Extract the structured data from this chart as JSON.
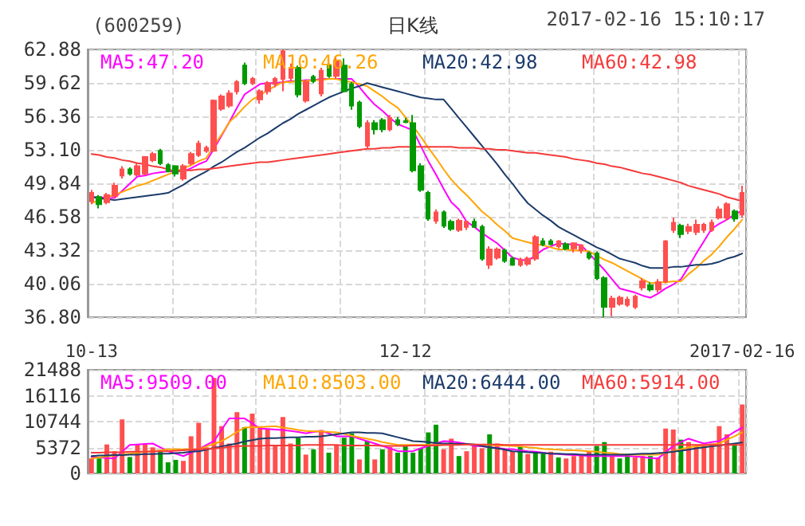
{
  "chart_data": [
    {
      "type": "candlestick",
      "title": "(600259)",
      "subtitle": "日K线",
      "annotations": [
        "2017-02-16 15:10:17"
      ],
      "categories": [
        null,
        null,
        null,
        null,
        null,
        null,
        null,
        null,
        null,
        null,
        null,
        null,
        null,
        null,
        null,
        null,
        null,
        null,
        null,
        null,
        null,
        null,
        null,
        null,
        null,
        null,
        null,
        null,
        null,
        null,
        null,
        null,
        null,
        null,
        null,
        null,
        null,
        null,
        null,
        null,
        null,
        null,
        null,
        null,
        null,
        null,
        null,
        null,
        null,
        null,
        null,
        null,
        null,
        null,
        null,
        null,
        null,
        null,
        null,
        null,
        null,
        null,
        null,
        null,
        null,
        null,
        null,
        null,
        null,
        null,
        null,
        null,
        null,
        null,
        null,
        null,
        null,
        null,
        null,
        null,
        null,
        null,
        null,
        null,
        null,
        null
      ],
      "ohlc": [
        [
          48.1,
          49.2,
          47.8,
          48.9
        ],
        [
          48.5,
          48.7,
          47.4,
          47.8
        ],
        [
          48.0,
          48.9,
          47.8,
          48.7
        ],
        [
          48.6,
          49.9,
          48.4,
          49.6
        ],
        [
          50.6,
          51.5,
          50.3,
          51.2
        ],
        [
          51.2,
          51.4,
          50.6,
          50.8
        ],
        [
          50.7,
          51.8,
          50.5,
          51.5
        ],
        [
          50.8,
          52.5,
          50.6,
          52.4
        ],
        [
          52.1,
          52.9,
          51.9,
          52.7
        ],
        [
          53.0,
          53.2,
          51.6,
          51.8
        ],
        [
          51.6,
          51.8,
          50.9,
          51.0
        ],
        [
          51.5,
          51.6,
          50.5,
          50.8
        ],
        [
          50.3,
          51.7,
          50.1,
          51.5
        ],
        [
          51.8,
          52.9,
          51.6,
          52.7
        ],
        [
          52.6,
          54.0,
          52.4,
          53.7
        ],
        [
          53.0,
          53.5,
          52.8,
          53.3
        ],
        [
          53.0,
          58.0,
          52.9,
          57.9
        ],
        [
          57.1,
          58.5,
          56.9,
          58.3
        ],
        [
          57.4,
          58.9,
          57.2,
          58.6
        ],
        [
          58.8,
          59.9,
          58.5,
          59.7
        ],
        [
          61.3,
          61.6,
          59.4,
          59.6
        ],
        [
          59.6,
          60.2,
          59.4,
          60.0
        ],
        [
          58.0,
          59.0,
          57.6,
          58.8
        ],
        [
          58.8,
          59.8,
          58.5,
          59.6
        ],
        [
          59.5,
          60.2,
          59.2,
          60.0
        ],
        [
          60.0,
          62.88,
          58.8,
          62.7
        ],
        [
          60.1,
          61.5,
          59.8,
          61.1
        ],
        [
          61.1,
          61.3,
          58.2,
          58.5
        ],
        [
          57.9,
          59.9,
          57.7,
          59.7
        ],
        [
          60.2,
          60.4,
          59.6,
          59.8
        ],
        [
          58.6,
          61.1,
          58.3,
          60.8
        ],
        [
          61.3,
          61.5,
          60.1,
          60.3
        ],
        [
          60.3,
          62.2,
          60.0,
          61.8
        ],
        [
          61.3,
          62.0,
          58.7,
          58.8
        ],
        [
          59.5,
          59.7,
          57.0,
          57.4
        ],
        [
          57.7,
          57.9,
          55.2,
          55.4
        ],
        [
          53.5,
          56.0,
          53.2,
          55.7
        ],
        [
          55.7,
          56.0,
          54.6,
          55.1
        ],
        [
          56.0,
          56.2,
          54.8,
          55.1
        ],
        [
          55.1,
          56.5,
          54.9,
          56.2
        ],
        [
          56.0,
          56.3,
          55.4,
          55.6
        ],
        [
          55.9,
          56.2,
          55.7,
          55.8
        ],
        [
          55.7,
          56.5,
          50.9,
          51.1
        ],
        [
          51.5,
          51.8,
          49.0,
          49.2
        ],
        [
          48.9,
          49.1,
          46.2,
          46.4
        ],
        [
          46.2,
          47.3,
          45.9,
          47.0
        ],
        [
          47.0,
          47.2,
          45.5,
          45.7
        ],
        [
          46.1,
          46.3,
          45.2,
          45.4
        ],
        [
          45.3,
          46.4,
          45.1,
          46.2
        ],
        [
          45.6,
          46.2,
          45.3,
          46.1
        ],
        [
          46.1,
          46.4,
          45.5,
          45.6
        ],
        [
          45.6,
          45.8,
          42.3,
          42.5
        ],
        [
          41.9,
          43.7,
          41.5,
          43.4
        ],
        [
          42.6,
          43.6,
          42.4,
          43.4
        ],
        [
          43.3,
          43.5,
          42.1,
          42.3
        ],
        [
          42.5,
          42.7,
          41.8,
          41.9
        ],
        [
          41.9,
          42.6,
          41.7,
          42.4
        ],
        [
          42.0,
          42.7,
          41.8,
          42.5
        ],
        [
          42.5,
          44.8,
          42.3,
          44.6
        ],
        [
          44.2,
          44.5,
          43.7,
          43.9
        ],
        [
          44.2,
          44.4,
          43.8,
          43.9
        ],
        [
          43.7,
          44.3,
          43.5,
          44.2
        ],
        [
          43.9,
          44.1,
          43.3,
          43.5
        ],
        [
          43.5,
          44.1,
          43.1,
          44.0
        ],
        [
          43.3,
          43.9,
          43.0,
          43.8
        ],
        [
          43.0,
          43.2,
          42.4,
          42.6
        ],
        [
          43.0,
          43.2,
          40.4,
          40.6
        ],
        [
          40.6,
          40.8,
          36.8,
          37.8
        ],
        [
          37.8,
          38.9,
          36.9,
          38.6
        ],
        [
          38.1,
          38.9,
          37.9,
          38.7
        ],
        [
          38.0,
          38.8,
          37.8,
          38.5
        ],
        [
          37.8,
          39.0,
          37.6,
          38.8
        ],
        [
          39.7,
          40.6,
          39.4,
          40.3
        ],
        [
          39.9,
          40.2,
          39.3,
          39.5
        ],
        [
          39.5,
          40.5,
          39.2,
          40.2
        ],
        [
          40.3,
          44.3,
          40.1,
          44.2
        ],
        [
          45.3,
          46.5,
          45.0,
          46.0
        ],
        [
          45.7,
          45.9,
          44.5,
          44.9
        ],
        [
          45.2,
          45.9,
          44.9,
          45.6
        ],
        [
          45.1,
          46.3,
          44.8,
          45.8
        ],
        [
          45.3,
          46.0,
          45.0,
          45.8
        ],
        [
          45.3,
          46.3,
          45.1,
          46.0
        ],
        [
          46.5,
          47.6,
          46.3,
          47.3
        ],
        [
          46.5,
          48.0,
          46.2,
          47.8
        ],
        [
          47.1,
          47.3,
          46.1,
          46.4
        ],
        [
          46.8,
          49.6,
          46.5,
          48.9
        ]
      ],
      "colors": [
        "#ff4f4f",
        "#009a00",
        "#ff4f4f",
        "#ff4f4f",
        "#ff4f4f",
        "#009a00",
        "#ff4f4f",
        "#ff4f4f",
        "#ff4f4f",
        "#009a00",
        "#009a00",
        "#009a00",
        "#ff4f4f",
        "#ff4f4f",
        "#ff4f4f",
        "#ff4f4f",
        "#ff4f4f",
        "#ff4f4f",
        "#ff4f4f",
        "#ff4f4f",
        "#009a00",
        "#ff4f4f",
        "#ff4f4f",
        "#ff4f4f",
        "#ff4f4f",
        "#ff4f4f",
        "#ff4f4f",
        "#009a00",
        "#ff4f4f",
        "#009a00",
        "#ff4f4f",
        "#009a00",
        "#ff4f4f",
        "#009a00",
        "#009a00",
        "#009a00",
        "#ff4f4f",
        "#009a00",
        "#009a00",
        "#ff4f4f",
        "#009a00",
        "#009a00",
        "#009a00",
        "#009a00",
        "#009a00",
        "#ff4f4f",
        "#009a00",
        "#009a00",
        "#ff4f4f",
        "#ff4f4f",
        "#009a00",
        "#009a00",
        "#ff4f4f",
        "#ff4f4f",
        "#009a00",
        "#009a00",
        "#ff4f4f",
        "#ff4f4f",
        "#ff4f4f",
        "#009a00",
        "#009a00",
        "#ff4f4f",
        "#009a00",
        "#ff4f4f",
        "#ff4f4f",
        "#009a00",
        "#009a00",
        "#009a00",
        "#ff4f4f",
        "#ff4f4f",
        "#ff4f4f",
        "#ff4f4f",
        "#ff4f4f",
        "#009a00",
        "#ff4f4f",
        "#ff4f4f",
        "#ff4f4f",
        "#009a00",
        "#ff4f4f",
        "#ff4f4f",
        "#ff4f4f",
        "#ff4f4f",
        "#ff4f4f",
        "#ff4f4f",
        "#009a00",
        "#ff4f4f"
      ],
      "series": [
        {
          "type": "line",
          "name": "MA5:47.20",
          "color": "#ff00ff",
          "values": [
            48.5,
            48.5,
            48.4,
            48.4,
            49.1,
            49.8,
            50.5,
            50.6,
            50.8,
            50.9,
            51.0,
            51.0,
            51.0,
            51.3,
            51.7,
            52.0,
            53.2,
            54.5,
            55.8,
            57.2,
            58.5,
            59.0,
            59.5,
            59.6,
            59.6,
            59.7,
            59.8,
            59.8,
            59.9,
            59.9,
            60.0,
            60.0,
            60.0,
            60.0,
            60.0,
            59.2,
            58.3,
            57.5,
            56.9,
            56.2,
            55.6,
            55.3,
            55.0,
            53.5,
            52.0,
            50.7,
            49.3,
            48.0,
            47.3,
            46.1,
            45.6,
            45.0,
            44.5,
            44.0,
            43.3,
            42.6,
            42.4,
            42.3,
            42.8,
            43.4,
            43.7,
            44.0,
            43.9,
            43.9,
            43.8,
            43.0,
            42.2,
            41.4,
            40.5,
            39.6,
            39.4,
            39.2,
            38.9,
            38.7,
            39.1,
            39.6,
            40.0,
            40.5,
            41.7,
            43.0,
            44.2,
            45.4,
            45.9,
            46.3,
            46.8,
            47.2
          ]
        },
        {
          "type": "line",
          "name": "MA10:46.26",
          "color": "#ffa500",
          "values": [
            47.9,
            48.2,
            48.5,
            48.7,
            49.0,
            49.3,
            49.6,
            49.8,
            50.1,
            50.4,
            50.7,
            51.0,
            51.3,
            51.6,
            52.0,
            52.3,
            53.5,
            54.6,
            55.8,
            56.5,
            57.3,
            58.0,
            58.4,
            58.9,
            59.3,
            59.7,
            59.7,
            59.8,
            59.8,
            59.9,
            59.9,
            60.0,
            60.0,
            59.8,
            59.7,
            59.5,
            59.3,
            58.8,
            58.3,
            57.7,
            57.2,
            56.3,
            55.4,
            54.4,
            53.3,
            52.3,
            51.2,
            50.2,
            49.4,
            48.7,
            47.9,
            47.1,
            46.5,
            45.8,
            45.2,
            44.5,
            44.3,
            44.1,
            43.9,
            43.8,
            43.6,
            43.4,
            43.4,
            43.3,
            43.3,
            43.2,
            42.8,
            42.4,
            42.1,
            41.7,
            41.3,
            40.9,
            40.5,
            40.1,
            40.2,
            40.2,
            40.3,
            40.3,
            41.0,
            41.6,
            42.3,
            42.9,
            43.7,
            44.6,
            45.4,
            46.3
          ]
        },
        {
          "type": "line",
          "name": "MA20:42.98",
          "color": "#1b3b6b",
          "values": [
            48.5,
            48.4,
            48.3,
            48.2,
            48.3,
            48.4,
            48.5,
            48.6,
            48.7,
            48.8,
            48.9,
            49.3,
            49.7,
            50.2,
            50.6,
            51.0,
            51.5,
            51.9,
            52.4,
            52.9,
            53.3,
            53.8,
            54.3,
            54.7,
            55.2,
            55.7,
            56.1,
            56.6,
            57.0,
            57.4,
            57.8,
            58.2,
            58.5,
            58.8,
            59.1,
            59.3,
            59.6,
            59.4,
            59.2,
            59.0,
            58.8,
            58.6,
            58.4,
            58.2,
            58.1,
            58.0,
            58.0,
            57.1,
            56.2,
            55.3,
            54.4,
            53.5,
            52.6,
            51.7,
            50.7,
            49.8,
            48.8,
            47.9,
            47.3,
            46.7,
            46.2,
            45.6,
            45.2,
            44.8,
            44.4,
            44.0,
            43.6,
            43.3,
            42.9,
            42.5,
            42.3,
            42.1,
            41.8,
            41.6,
            41.6,
            41.6,
            41.7,
            41.7,
            41.8,
            41.9,
            41.9,
            42.0,
            42.2,
            42.5,
            42.7,
            43.0
          ]
        },
        {
          "type": "line",
          "name": "MA60:42.98",
          "color": "#f53a3a",
          "values": [
            52.7,
            52.6,
            52.4,
            52.3,
            52.1,
            52.0,
            51.8,
            51.7,
            51.5,
            51.4,
            51.2,
            51.0,
            51.1,
            51.1,
            51.2,
            51.2,
            51.3,
            51.4,
            51.5,
            51.6,
            51.7,
            51.8,
            51.9,
            51.9,
            52.0,
            52.1,
            52.2,
            52.3,
            52.4,
            52.5,
            52.6,
            52.7,
            52.8,
            52.9,
            53.0,
            53.1,
            53.2,
            53.2,
            53.3,
            53.3,
            53.4,
            53.4,
            53.4,
            53.4,
            53.4,
            53.4,
            53.4,
            53.4,
            53.3,
            53.3,
            53.3,
            53.2,
            53.2,
            53.1,
            53.1,
            53.0,
            52.9,
            52.8,
            52.8,
            52.7,
            52.6,
            52.5,
            52.4,
            52.2,
            52.1,
            52.0,
            51.8,
            51.7,
            51.5,
            51.4,
            51.2,
            51.0,
            50.8,
            50.7,
            50.5,
            50.3,
            50.1,
            49.9,
            49.6,
            49.4,
            49.2,
            49.0,
            48.8,
            48.5,
            48.3,
            48.1
          ]
        }
      ],
      "ylim": [
        36.8,
        62.88
      ],
      "yticks": [
        {
          "value": 36.8,
          "label": "36.80"
        },
        {
          "value": 40.06,
          "label": "40.06"
        },
        {
          "value": 43.32,
          "label": "43.32"
        },
        {
          "value": 46.58,
          "label": "46.58"
        },
        {
          "value": 49.84,
          "label": "49.84"
        },
        {
          "value": 53.1,
          "label": "53.10"
        },
        {
          "value": 56.36,
          "label": "56.36"
        },
        {
          "value": 59.62,
          "label": "59.62"
        },
        {
          "value": 62.88,
          "label": "62.88"
        }
      ],
      "grid": true,
      "marker": "none"
    },
    {
      "type": "bar",
      "categories": [
        "10-13",
        null,
        null,
        null,
        null,
        null,
        null,
        null,
        null,
        null,
        null,
        null,
        null,
        null,
        null,
        null,
        null,
        null,
        null,
        null,
        null,
        null,
        null,
        null,
        null,
        null,
        null,
        null,
        null,
        null,
        null,
        null,
        null,
        null,
        null,
        null,
        null,
        null,
        null,
        null,
        null,
        "12-12",
        null,
        null,
        null,
        null,
        null,
        null,
        null,
        null,
        null,
        null,
        null,
        null,
        null,
        null,
        null,
        null,
        null,
        null,
        null,
        null,
        null,
        null,
        null,
        null,
        null,
        null,
        null,
        null,
        null,
        null,
        null,
        null,
        null,
        null,
        null,
        null,
        null,
        null,
        null,
        null,
        null,
        null,
        null,
        "2017-02-16"
      ],
      "series": [
        {
          "type": "bar",
          "values": [
            3100,
            3100,
            6000,
            4600,
            11200,
            3400,
            6000,
            6000,
            5400,
            4600,
            2300,
            2800,
            2600,
            7700,
            10500,
            5400,
            19800,
            9800,
            6200,
            12700,
            9600,
            12400,
            9800,
            9300,
            5900,
            11700,
            6200,
            7400,
            3900,
            5000,
            9000,
            4300,
            5900,
            7400,
            8300,
            2900,
            6800,
            2900,
            5000,
            5500,
            4300,
            5700,
            4300,
            5200,
            8500,
            10100,
            5000,
            7200,
            3600,
            4600,
            5700,
            5200,
            8100,
            6200,
            5000,
            4500,
            5500,
            4000,
            4500,
            4100,
            4500,
            3300,
            3100,
            3600,
            4000,
            4600,
            5700,
            6500,
            3600,
            3100,
            4100,
            3300,
            3600,
            3600,
            3300,
            9300,
            9100,
            7000,
            6500,
            5700,
            5700,
            6200,
            9800,
            8100,
            6200,
            14300
          ],
          "colors": [
            "#ff4f4f",
            "#009a00",
            "#ff4f4f",
            "#ff4f4f",
            "#ff4f4f",
            "#009a00",
            "#ff4f4f",
            "#ff4f4f",
            "#ff4f4f",
            "#009a00",
            "#009a00",
            "#009a00",
            "#ff4f4f",
            "#ff4f4f",
            "#ff4f4f",
            "#ff4f4f",
            "#ff4f4f",
            "#ff4f4f",
            "#ff4f4f",
            "#ff4f4f",
            "#009a00",
            "#ff4f4f",
            "#ff4f4f",
            "#ff4f4f",
            "#ff4f4f",
            "#ff4f4f",
            "#ff4f4f",
            "#009a00",
            "#ff4f4f",
            "#009a00",
            "#ff4f4f",
            "#009a00",
            "#ff4f4f",
            "#009a00",
            "#009a00",
            "#ff4f4f",
            "#009a00",
            "#ff4f4f",
            "#009a00",
            "#ff4f4f",
            "#009a00",
            "#009a00",
            "#009a00",
            "#009a00",
            "#009a00",
            "#009a00",
            "#ff4f4f",
            "#ff4f4f",
            "#009a00",
            "#ff4f4f",
            "#ff4f4f",
            "#ff4f4f",
            "#009a00",
            "#ff4f4f",
            "#ff4f4f",
            "#ff4f4f",
            "#009a00",
            "#ff4f4f",
            "#009a00",
            "#009a00",
            "#ff4f4f",
            "#009a00",
            "#ff4f4f",
            "#ff4f4f",
            "#ff4f4f",
            "#ff4f4f",
            "#009a00",
            "#009a00",
            "#ff4f4f",
            "#009a00",
            "#009a00",
            "#ff4f4f",
            "#ff4f4f",
            "#009a00",
            "#ff4f4f",
            "#ff4f4f",
            "#ff4f4f",
            "#009a00",
            "#ff4f4f",
            "#ff4f4f",
            "#ff4f4f",
            "#ff4f4f",
            "#ff4f4f",
            "#ff4f4f",
            "#009a00",
            "#ff4f4f"
          ]
        },
        {
          "type": "line",
          "name": "MA5:9509.00",
          "color": "#ff00ff",
          "values": [
            3400,
            3300,
            3200,
            3100,
            4500,
            5900,
            6000,
            6100,
            6200,
            5400,
            4600,
            4100,
            3600,
            4300,
            5000,
            5900,
            6700,
            9100,
            11400,
            11400,
            11400,
            10400,
            9300,
            9200,
            9100,
            9000,
            8800,
            8600,
            8300,
            8600,
            8800,
            8300,
            7700,
            7700,
            7700,
            7200,
            6700,
            6200,
            5700,
            5200,
            4600,
            4600,
            4600,
            5200,
            5700,
            6200,
            6700,
            6600,
            6400,
            6100,
            5700,
            5600,
            5400,
            5300,
            5100,
            5000,
            4800,
            4600,
            4500,
            4300,
            4100,
            4000,
            3900,
            3800,
            3700,
            3600,
            3600,
            3600,
            3600,
            3600,
            3600,
            3500,
            3400,
            3200,
            3100,
            4400,
            5700,
            6500,
            7200,
            6700,
            6200,
            6500,
            6700,
            7600,
            8600,
            9500
          ]
        },
        {
          "type": "line",
          "name": "MA10:8503.00",
          "color": "#ffa500",
          "values": [
            3100,
            3300,
            3500,
            3700,
            3900,
            4100,
            4300,
            4500,
            4600,
            4800,
            5000,
            5000,
            5000,
            5000,
            5000,
            5600,
            6100,
            6700,
            7600,
            8600,
            9500,
            9600,
            9600,
            9700,
            9800,
            9500,
            9300,
            9000,
            8800,
            8700,
            8700,
            8600,
            8500,
            8200,
            7800,
            7500,
            7200,
            6900,
            6500,
            6200,
            5900,
            5900,
            5900,
            5900,
            5900,
            5900,
            5900,
            5900,
            6000,
            6000,
            6000,
            5900,
            5900,
            5800,
            5800,
            5700,
            5600,
            5400,
            5300,
            5100,
            5000,
            4900,
            4800,
            4800,
            4700,
            4600,
            4500,
            4300,
            4200,
            4000,
            3900,
            3900,
            3900,
            3900,
            3900,
            4300,
            4600,
            5000,
            5400,
            5600,
            5800,
            6000,
            6200,
            7000,
            7700,
            8500
          ]
        },
        {
          "type": "line",
          "name": "MA20:6444.00",
          "color": "#1b3b6b",
          "values": [
            3600,
            3700,
            3700,
            3800,
            3800,
            3900,
            3900,
            4000,
            4000,
            4100,
            4100,
            4200,
            4300,
            4500,
            4600,
            4900,
            5300,
            5600,
            5900,
            6200,
            6600,
            6900,
            7200,
            7300,
            7300,
            7400,
            7500,
            7500,
            7600,
            7600,
            7700,
            7900,
            8100,
            8300,
            8500,
            8500,
            8400,
            8400,
            8300,
            7900,
            7500,
            7100,
            6700,
            6600,
            6500,
            6300,
            6200,
            6200,
            6100,
            6100,
            6000,
            5700,
            5400,
            5200,
            4900,
            4600,
            4500,
            4400,
            4300,
            4200,
            4100,
            4100,
            4000,
            4000,
            3900,
            3900,
            3900,
            3900,
            3900,
            3900,
            3900,
            4000,
            4100,
            4100,
            4200,
            4300,
            4500,
            4700,
            4900,
            5200,
            5400,
            5600,
            5800,
            6000,
            6200,
            6400
          ]
        },
        {
          "type": "line",
          "name": "MA60:5914.00",
          "color": "#f53a3a",
          "values": [
            4300,
            4300,
            4400,
            4400,
            4400,
            4500,
            4500,
            4500,
            4600,
            4600,
            4600,
            4700,
            4800,
            4900,
            5000,
            5100,
            5200,
            5300,
            5500,
            5600,
            5700,
            5700,
            5700,
            5800,
            5800,
            5800,
            5800,
            5800,
            5900,
            5900,
            5900,
            5900,
            5900,
            5800,
            5800,
            5800,
            5800,
            5800,
            5700,
            5700,
            5700,
            5700,
            5800,
            5800,
            5800,
            5800,
            5900,
            5900,
            5900,
            6000,
            6000,
            6000,
            6000,
            6000,
            5900,
            5900,
            5900,
            5900,
            5900,
            5900,
            5900,
            5900,
            5900,
            5900,
            5900,
            5900,
            5900,
            5900,
            5900,
            5900,
            5900,
            5900,
            5900,
            5900,
            5900,
            5900,
            5900,
            5900,
            5900,
            5900,
            5900,
            5900,
            5900,
            5900,
            5900,
            5900
          ]
        }
      ],
      "ylim": [
        0,
        21488
      ],
      "yticks": [
        0,
        5372,
        10744,
        16116,
        21488
      ],
      "grid": true,
      "marker": "none"
    }
  ]
}
